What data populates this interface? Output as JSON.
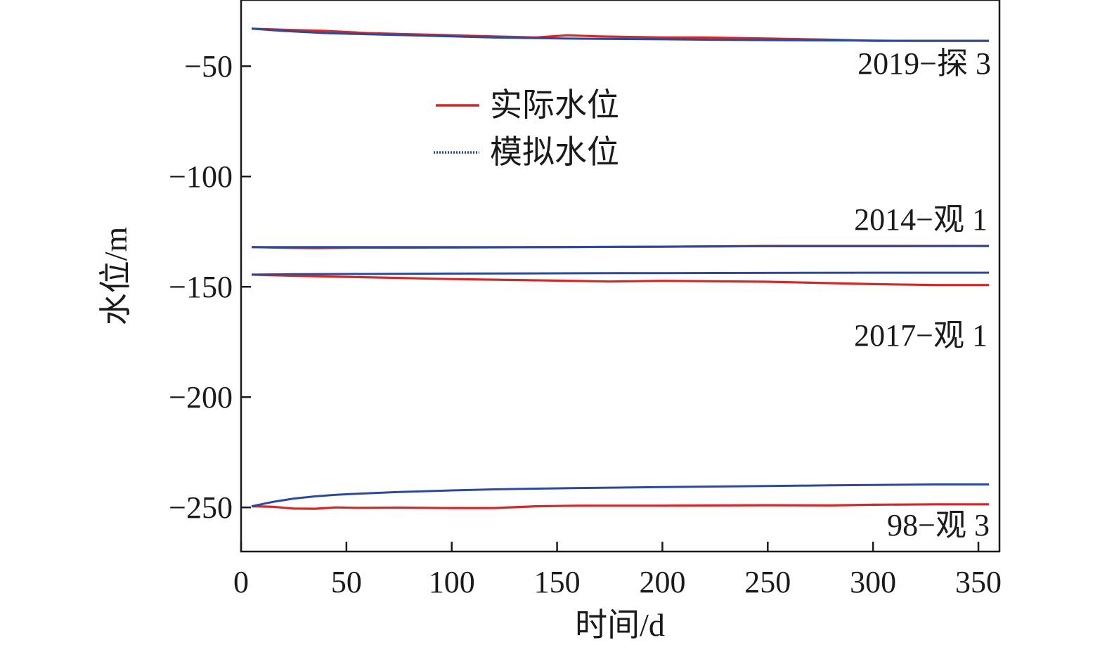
{
  "chart_data": {
    "type": "line",
    "title": "",
    "xlabel": "时间/d",
    "ylabel": "水位/m",
    "xlim": [
      0,
      360
    ],
    "ylim": [
      -270,
      -20
    ],
    "xticks": [
      0,
      50,
      100,
      150,
      200,
      250,
      300,
      350
    ],
    "yticks": [
      -50,
      -100,
      -150,
      -200,
      -250
    ],
    "ytick_labels": [
      "−50",
      "−100",
      "−150",
      "−200",
      "−250"
    ],
    "grid": false,
    "legend": {
      "placement": "top-center",
      "entries": [
        {
          "name": "实际水位",
          "color": "#d62728",
          "style": "solid"
        },
        {
          "name": "模拟水位",
          "color": "#2b4a9b",
          "style": "dotted"
        }
      ]
    },
    "wells": [
      {
        "label": "2019−探 3",
        "x": [
          5,
          20,
          40,
          60,
          80,
          100,
          120,
          140,
          155,
          170,
          200,
          220,
          250,
          280,
          300,
          320,
          355
        ],
        "actual": [
          -33,
          -33.5,
          -34,
          -35,
          -35.5,
          -36,
          -36.5,
          -37,
          -36,
          -36.5,
          -37,
          -37,
          -37.5,
          -38,
          -38.5,
          -38.5,
          -38.5
        ],
        "simulated": [
          -33,
          -34,
          -35,
          -35.5,
          -36,
          -36.5,
          -37,
          -37.3,
          -37.5,
          -37.6,
          -37.8,
          -38,
          -38.2,
          -38.3,
          -38.4,
          -38.5,
          -38.5
        ],
        "actual_color": "#d62728",
        "simulated_color": "#2b4a9b"
      },
      {
        "label": "2014−观 1",
        "x": [
          5,
          20,
          35,
          50,
          100,
          150,
          200,
          250,
          300,
          355
        ],
        "actual": [
          -132,
          -132.3,
          -132.5,
          -132.3,
          -132.2,
          -132,
          -131.8,
          -131.5,
          -131.5,
          -131.5
        ],
        "simulated": [
          -132,
          -132,
          -132,
          -132,
          -132,
          -132,
          -131.8,
          -131.6,
          -131.6,
          -131.5
        ],
        "actual_color": "#d62728",
        "simulated_color": "#2b4a9b"
      },
      {
        "label": "2017−观 1",
        "x": [
          5,
          25,
          50,
          100,
          150,
          175,
          200,
          250,
          300,
          330,
          355
        ],
        "actual": [
          -144.5,
          -145,
          -145.5,
          -146.5,
          -147.2,
          -147.6,
          -147.3,
          -147.7,
          -148.8,
          -149.2,
          -149.2
        ],
        "simulated": [
          -144.5,
          -144.3,
          -144.2,
          -144,
          -143.9,
          -143.8,
          -143.8,
          -143.7,
          -143.6,
          -143.6,
          -143.6
        ],
        "actual_color": "#d62728",
        "simulated_color": "#2b4a9b"
      },
      {
        "label": "98−观 3",
        "x": [
          5,
          15,
          25,
          35,
          45,
          55,
          75,
          100,
          120,
          140,
          160,
          200,
          250,
          280,
          300,
          330,
          355
        ],
        "actual": [
          -249.5,
          -249.7,
          -250.5,
          -250.6,
          -250,
          -250.2,
          -250.1,
          -250.3,
          -250.3,
          -249.5,
          -249.2,
          -249.2,
          -249,
          -249.1,
          -248.8,
          -248.6,
          -248.6
        ],
        "simulated": [
          -249.5,
          -247.5,
          -246,
          -245,
          -244.3,
          -243.8,
          -243,
          -242.3,
          -241.8,
          -241.5,
          -241.2,
          -240.8,
          -240.3,
          -240,
          -239.8,
          -239.6,
          -239.6
        ],
        "actual_color": "#d62728",
        "simulated_color": "#2b4a9b"
      }
    ]
  }
}
